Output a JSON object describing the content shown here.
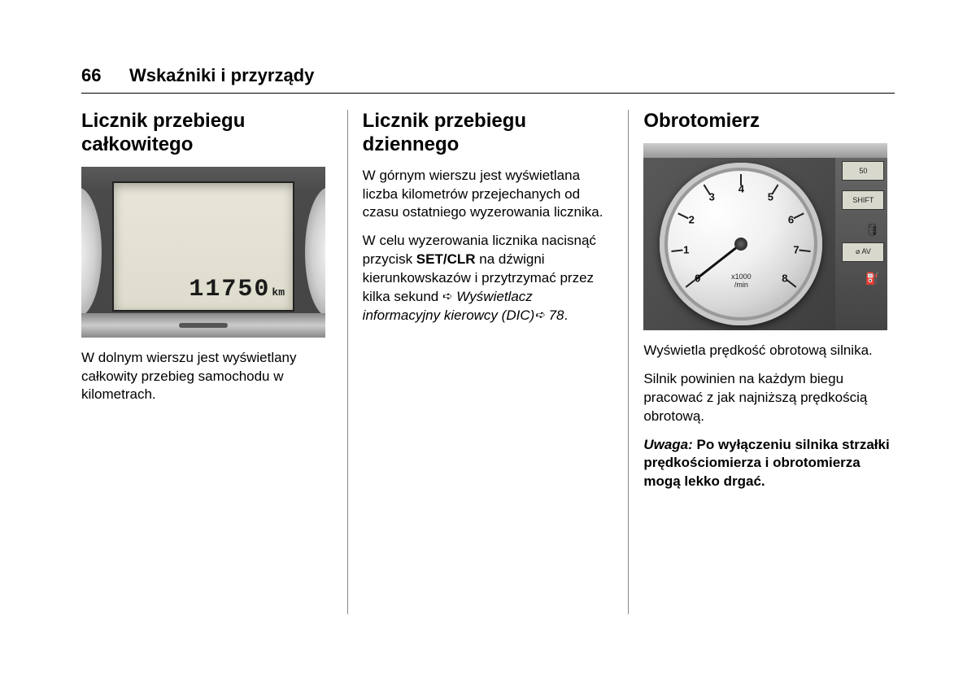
{
  "header": {
    "page_number": "66",
    "section_title": "Wskaźniki i przyrządy"
  },
  "col1": {
    "heading": "Licznik przebiegu całkowitego",
    "odometer": {
      "value": "11750",
      "unit": "km"
    },
    "body": "W dolnym wierszu jest wyświetlany całkowity przebieg samochodu w kilometrach."
  },
  "col2": {
    "heading": "Licznik przebiegu dziennego",
    "p1": "W górnym wierszu jest wyświetlana liczba kilometrów przejechanych od czasu ostatniego wyzerowania licznika.",
    "p2_a": "W celu wyzerowania licznika nacisnąć przycisk ",
    "p2_bold": "SET/CLR",
    "p2_b": " na dźwigni kierunkowskazów i przytrzymać przez kilka sekund ",
    "p2_italic": "Wyświetlacz informacyjny kierowcy (DIC)",
    "p2_ref": " 78",
    "p2_end": "."
  },
  "col3": {
    "heading": "Obrotomierz",
    "tach": {
      "numbers": [
        "0",
        "1",
        "2",
        "3",
        "4",
        "5",
        "6",
        "7",
        "8"
      ],
      "unit_line1": "x1000",
      "unit_line2": "/min",
      "side_top": "50",
      "side_shift": "SHIFT",
      "side_avg": "⌀ AV"
    },
    "p1": "Wyświetla prędkość obrotową silnika.",
    "p2": "Silnik powinien na każdym biegu pracować z jak najniższą prędkością obrotową.",
    "note_label": "Uwaga:",
    "note_body": "Po wyłączeniu silnika strzałki prędkościomierza i obrotomierza mogą lekko drgać."
  },
  "style": {
    "tach_angles_deg": [
      -128,
      -96,
      -64,
      -32,
      0,
      32,
      64,
      96,
      128
    ],
    "tach_num_radius": 68,
    "colors": {
      "text": "#000000",
      "divider": "#888888",
      "lcd_bg": "#dedccc"
    }
  }
}
